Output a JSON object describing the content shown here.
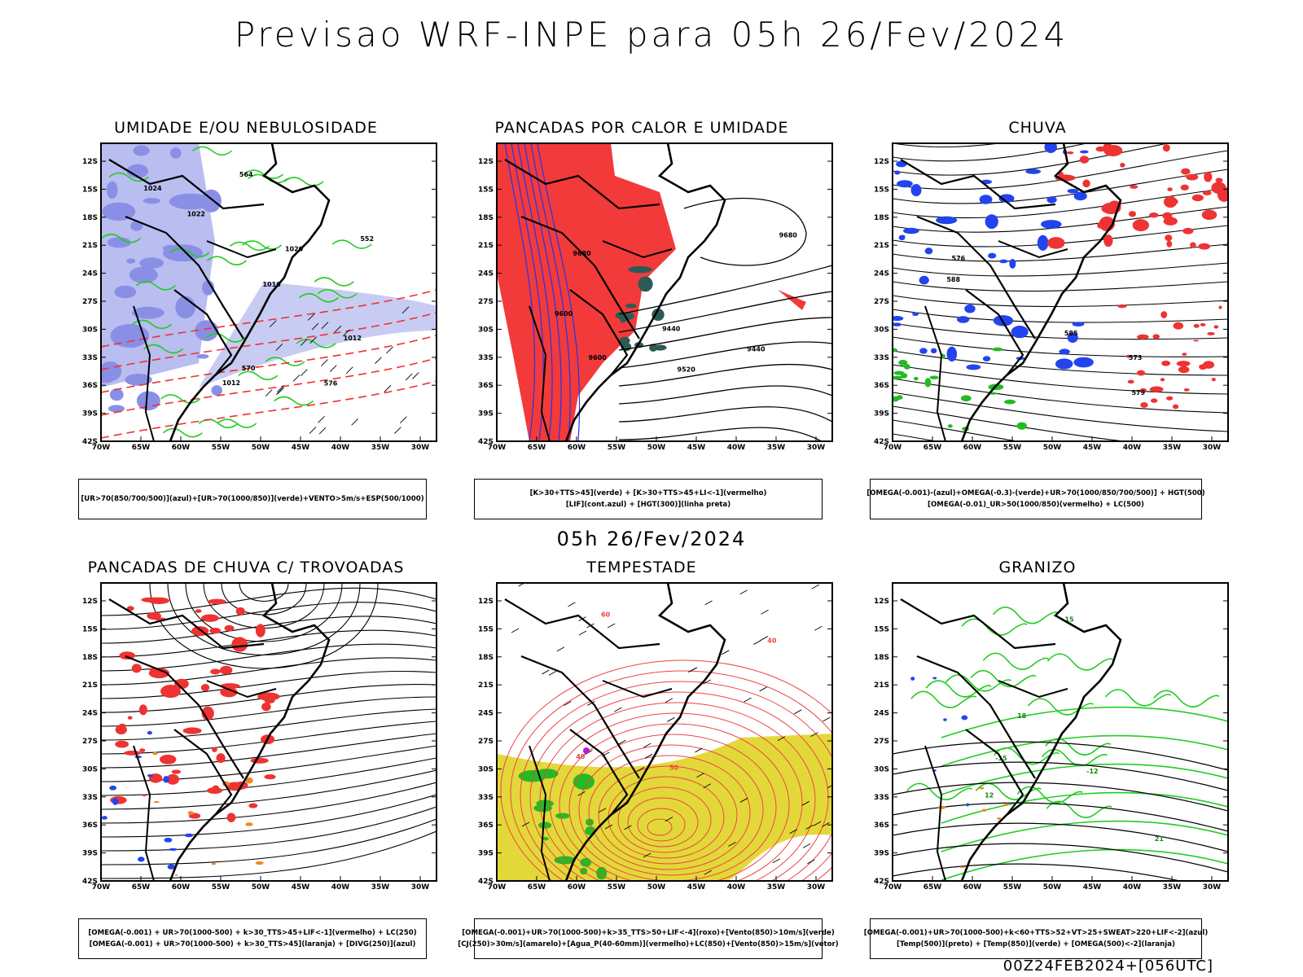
{
  "title": "Previsao WRF-INPE  para 05h 26/Fev/2024",
  "mid_title": "05h 26/Fev/2024",
  "footer": "00Z24FEB2024+[056UTC]",
  "axes": {
    "lat_labels": [
      "12S",
      "15S",
      "18S",
      "21S",
      "24S",
      "27S",
      "30S",
      "33S",
      "36S",
      "39S",
      "42S"
    ],
    "lon_labels": [
      "70W",
      "65W",
      "60W",
      "55W",
      "50W",
      "45W",
      "40W",
      "35W",
      "30W"
    ]
  },
  "panels": [
    {
      "title": "UMIDADE E/OU NEBULOSIDADE",
      "legend": [
        "[UR>70(850/700/500)](azul)+[UR>70(1000/850)](verde)+VENTO>5m/s+ESP(500/1000)"
      ],
      "labels": [
        "1012",
        "1016",
        "1020",
        "1024",
        "1012",
        "576",
        "570",
        "564",
        "552",
        "1022"
      ],
      "colors": {
        "shade": "#8a8fe6",
        "line": "#22cc22",
        "dash": "#ee3333"
      }
    },
    {
      "title": "PANCADAS POR CALOR E UMIDADE",
      "legend": [
        "[K>30+TTS>45](verde)  +  [K>30+TTS>45+LI<-1](vermelho)",
        "[LIF](cont.azul)  +  [HGT(300)](linha preta)"
      ],
      "labels": [
        "9680",
        "9600",
        "9520",
        "9440",
        "9440",
        "9600",
        "9680"
      ],
      "colors": {
        "shade": "#f23a3a",
        "line": "#2233ee",
        "dark": "#2d5a55"
      }
    },
    {
      "title": "CHUVA",
      "legend": [
        "[OMEGA(-0.001)-(azul)+OMEGA(-0.3)-(verde)+UR>70(1000/850/700/500)]  +  HGT(500)",
        "[OMEGA(-0.01)_UR>50(1000/850)(vermelho)  +  LC(500)"
      ],
      "labels": [
        "588",
        "585",
        "579",
        "576",
        "573"
      ],
      "colors": {
        "red": "#ee3333",
        "blue": "#2244ee",
        "green": "#22bb22"
      }
    },
    {
      "title": "PANCADAS DE CHUVA C/ TROVOADAS",
      "legend": [
        "[OMEGA(-0.001)  +  UR>70(1000-500)  +  k>30_TTS>45+LIF<-1](vermelho)  +  LC(250)",
        "[OMEGA(-0.001)  +  UR>70(1000-500)  +  k>30_TTS>45](laranja)  +  [DIVG(250)](azul)"
      ],
      "labels": [],
      "colors": {
        "red": "#ee3333",
        "orange": "#ee8822",
        "blue": "#2244ee"
      }
    },
    {
      "title": "TEMPESTADE",
      "legend": [
        "[OMEGA(-0.001)+UR>70(1000-500)+k>35_TTS>50+LIF<-4](roxo)+[Vento(850)>10m/s](verde)",
        "[CJ(250)>30m/s](amarelo)+[Agua_P(40-60mm)](vermelho)+LC(850)+[Vento(850)>15m/s](vetor)"
      ],
      "labels": [
        "40",
        "50",
        "60",
        "40"
      ],
      "colors": {
        "yellow": "#e3d83a",
        "red": "#ee4444",
        "green": "#22bb22",
        "purple": "#aa22cc"
      }
    },
    {
      "title": "GRANIZO",
      "legend": [
        "[OMEGA(-0.001)+UR>70(1000-500)+k<60+TTS>52+VT>25+SWEAT>220+LIF<-2](azul)",
        "[Temp(500)](preto)  +  [Temp(850)](verde)  +  [OMEGA(500)<-2](laranja)"
      ],
      "labels": [
        "15",
        "12",
        "21",
        "18",
        "-12",
        "-15"
      ],
      "colors": {
        "green": "#22cc22",
        "orange": "#ee8822",
        "blue": "#2244ee"
      }
    }
  ]
}
